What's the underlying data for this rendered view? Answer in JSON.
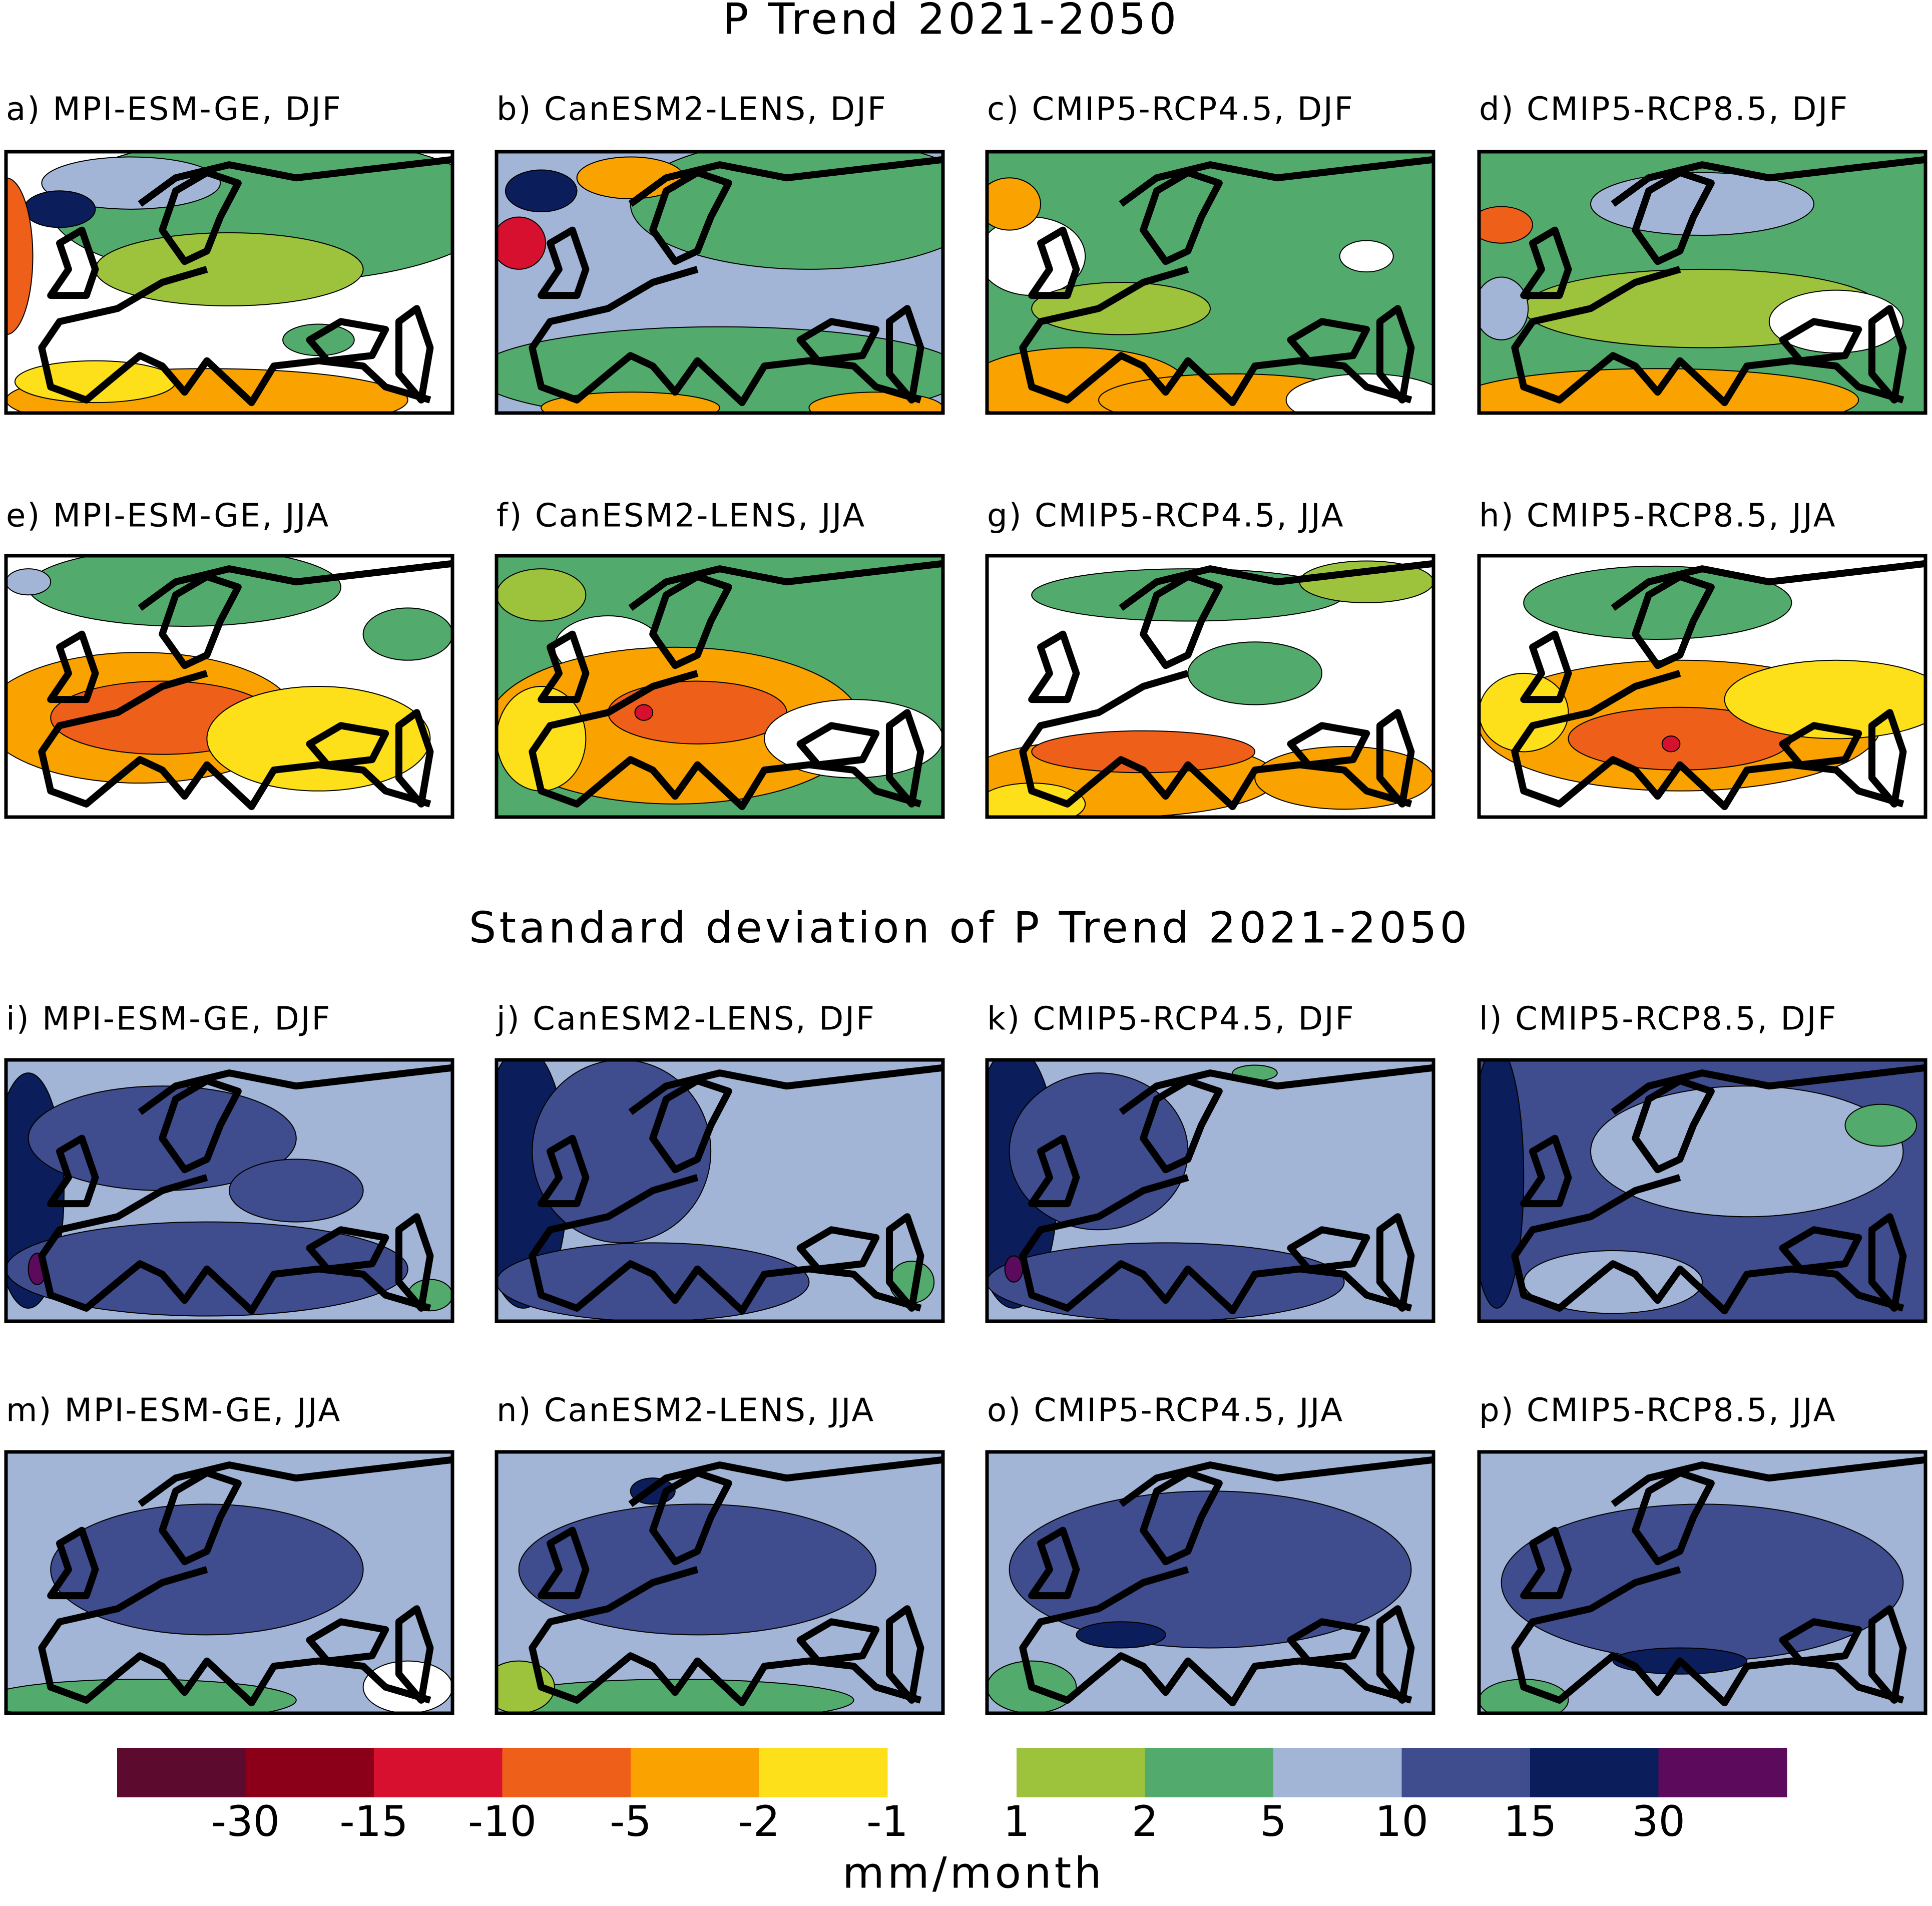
{
  "figure": {
    "sections": [
      {
        "title": "P Trend 2021-2050",
        "panels": [
          "a) MPI-ESM-GE, DJF",
          "b) CanESM2-LENS, DJF",
          "c) CMIP5-RCP4.5, DJF",
          "d) CMIP5-RCP8.5, DJF",
          "e) MPI-ESM-GE, JJA",
          "f) CanESM2-LENS, JJA",
          "g) CMIP5-RCP4.5, JJA",
          "h) CMIP5-RCP8.5, JJA"
        ]
      },
      {
        "title": "Standard deviation of P Trend 2021-2050",
        "panels": [
          "i) MPI-ESM-GE, DJF",
          "j) CanESM2-LENS, DJF",
          "k) CMIP5-RCP4.5, DJF",
          "l) CMIP5-RCP8.5, DJF",
          "m) MPI-ESM-GE, JJA",
          "n) CanESM2-LENS, JJA",
          "o) CMIP5-RCP4.5, JJA",
          "p) CMIP5-RCP8.5, JJA"
        ]
      }
    ],
    "colorbar": {
      "label": "mm/month",
      "bars": [
        {
          "colors": [
            "#5c0a2e",
            "#8b0018",
            "#d7102f",
            "#ee6019",
            "#f9a200",
            "#fde01a"
          ],
          "ticks": [
            -30,
            -15,
            -10,
            -5,
            -2,
            -1
          ]
        },
        {
          "colors": [
            "#9dc33d",
            "#52ab6c",
            "#a3b5d6",
            "#3f4c8e",
            "#0c1d5b",
            "#5c0a5c"
          ],
          "ticks": [
            1,
            2,
            5,
            10,
            15,
            30
          ]
        }
      ]
    }
  }
}
